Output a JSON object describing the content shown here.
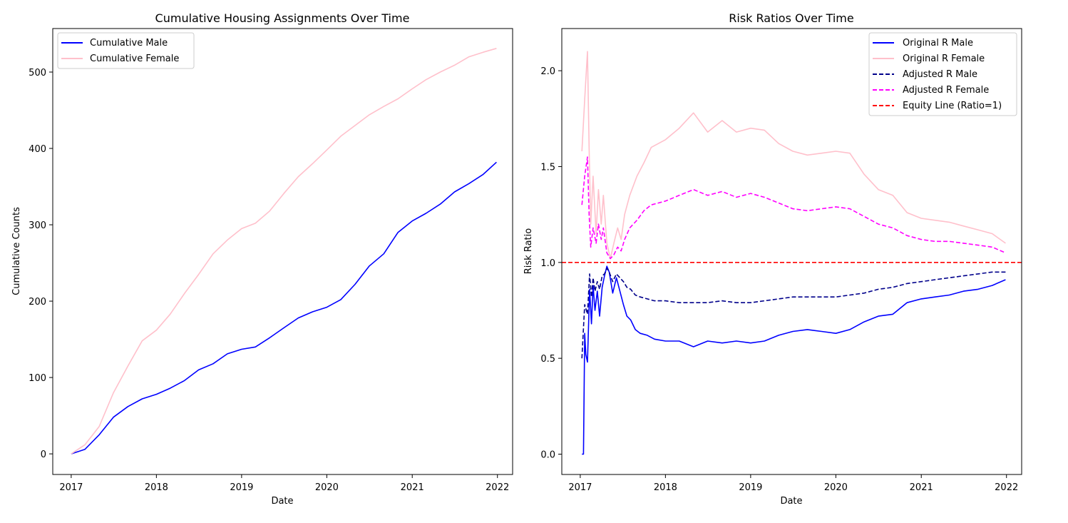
{
  "chart_data": [
    {
      "type": "line",
      "title": "Cumulative Housing Assignments Over Time",
      "xlabel": "Date",
      "ylabel": "Cumulative Counts",
      "xlim": [
        "2016-10-14",
        "2022-03-07"
      ],
      "ylim": [
        -27,
        557
      ],
      "x_ticks": [
        "2017",
        "2018",
        "2019",
        "2020",
        "2021",
        "2022"
      ],
      "y_ticks": [
        0,
        100,
        200,
        300,
        400,
        500
      ],
      "grid": false,
      "legend_position": "upper left",
      "series": [
        {
          "name": "Cumulative Male",
          "color": "#0000ff",
          "style": "solid",
          "x": [
            "2017-01-01",
            "2017-03-01",
            "2017-05-01",
            "2017-07-01",
            "2017-09-01",
            "2017-11-01",
            "2018-01-01",
            "2018-03-01",
            "2018-05-01",
            "2018-07-01",
            "2018-09-01",
            "2018-11-01",
            "2019-01-01",
            "2019-03-01",
            "2019-05-01",
            "2019-07-01",
            "2019-09-01",
            "2019-11-01",
            "2020-01-01",
            "2020-03-01",
            "2020-05-01",
            "2020-07-01",
            "2020-09-01",
            "2020-11-01",
            "2021-01-01",
            "2021-03-01",
            "2021-05-01",
            "2021-07-01",
            "2021-09-01",
            "2021-11-01",
            "2021-12-28"
          ],
          "values": [
            0,
            6,
            25,
            48,
            62,
            72,
            78,
            86,
            96,
            110,
            118,
            131,
            137,
            140,
            152,
            165,
            178,
            186,
            192,
            202,
            222,
            246,
            262,
            290,
            305,
            315,
            327,
            343,
            354,
            366,
            382
          ]
        },
        {
          "name": "Cumulative Female",
          "color": "#ffc0cb",
          "style": "solid",
          "x": [
            "2017-01-01",
            "2017-03-01",
            "2017-05-01",
            "2017-07-01",
            "2017-09-01",
            "2017-11-01",
            "2018-01-01",
            "2018-03-01",
            "2018-05-01",
            "2018-07-01",
            "2018-09-01",
            "2018-11-01",
            "2019-01-01",
            "2019-03-01",
            "2019-05-01",
            "2019-07-01",
            "2019-09-01",
            "2019-11-01",
            "2020-01-01",
            "2020-03-01",
            "2020-05-01",
            "2020-07-01",
            "2020-09-01",
            "2020-11-01",
            "2021-01-01",
            "2021-03-01",
            "2021-05-01",
            "2021-07-01",
            "2021-09-01",
            "2021-11-01",
            "2021-12-28"
          ],
          "values": [
            0,
            12,
            36,
            80,
            115,
            148,
            162,
            183,
            210,
            235,
            262,
            280,
            295,
            302,
            318,
            341,
            363,
            380,
            398,
            416,
            430,
            444,
            455,
            465,
            478,
            490,
            500,
            509,
            520,
            526,
            531
          ]
        }
      ]
    },
    {
      "type": "line",
      "title": "Risk Ratios Over Time",
      "xlabel": "Date",
      "ylabel": "Risk Ratio",
      "xlim": [
        "2016-10-14",
        "2022-03-07"
      ],
      "ylim": [
        -0.106,
        2.22
      ],
      "x_ticks": [
        "2017",
        "2018",
        "2019",
        "2020",
        "2021",
        "2022"
      ],
      "y_ticks": [
        "0.0",
        "0.5",
        "1.0",
        "1.5",
        "2.0"
      ],
      "grid": false,
      "legend_position": "upper right",
      "series": [
        {
          "name": "Original R Male",
          "color": "#0000ff",
          "style": "solid",
          "x": [
            "2017-01-08",
            "2017-01-15",
            "2017-01-20",
            "2017-01-25",
            "2017-02-01",
            "2017-02-10",
            "2017-02-18",
            "2017-02-25",
            "2017-03-05",
            "2017-03-15",
            "2017-03-25",
            "2017-04-05",
            "2017-04-15",
            "2017-04-25",
            "2017-05-05",
            "2017-05-20",
            "2017-06-05",
            "2017-06-20",
            "2017-07-05",
            "2017-07-20",
            "2017-08-05",
            "2017-08-25",
            "2017-09-15",
            "2017-10-15",
            "2017-11-15",
            "2018-01-01",
            "2018-03-01",
            "2018-05-01",
            "2018-07-01",
            "2018-09-01",
            "2018-11-01",
            "2019-01-01",
            "2019-03-01",
            "2019-05-01",
            "2019-07-01",
            "2019-09-01",
            "2019-11-01",
            "2020-01-01",
            "2020-03-01",
            "2020-05-01",
            "2020-07-01",
            "2020-09-01",
            "2020-11-01",
            "2021-01-01",
            "2021-03-01",
            "2021-05-01",
            "2021-07-01",
            "2021-09-01",
            "2021-11-01",
            "2021-12-28"
          ],
          "values": [
            0.0,
            0.0,
            0.63,
            0.52,
            0.48,
            0.86,
            0.68,
            0.88,
            0.75,
            0.85,
            0.72,
            0.87,
            0.93,
            0.98,
            0.95,
            0.84,
            0.92,
            0.85,
            0.78,
            0.72,
            0.7,
            0.65,
            0.63,
            0.62,
            0.6,
            0.59,
            0.59,
            0.56,
            0.59,
            0.58,
            0.59,
            0.58,
            0.59,
            0.62,
            0.64,
            0.65,
            0.64,
            0.63,
            0.65,
            0.69,
            0.72,
            0.73,
            0.79,
            0.81,
            0.82,
            0.83,
            0.85,
            0.86,
            0.88,
            0.91
          ]
        },
        {
          "name": "Original R Female",
          "color": "#ffc0cb",
          "style": "solid",
          "x": [
            "2017-01-08",
            "2017-01-20",
            "2017-02-01",
            "2017-02-08",
            "2017-02-15",
            "2017-02-25",
            "2017-03-10",
            "2017-03-20",
            "2017-04-01",
            "2017-04-10",
            "2017-04-25",
            "2017-05-10",
            "2017-05-25",
            "2017-06-10",
            "2017-06-25",
            "2017-07-10",
            "2017-08-01",
            "2017-09-01",
            "2017-10-01",
            "2017-11-01",
            "2018-01-01",
            "2018-03-01",
            "2018-05-01",
            "2018-07-01",
            "2018-09-01",
            "2018-11-01",
            "2019-01-01",
            "2019-03-01",
            "2019-05-01",
            "2019-07-01",
            "2019-09-01",
            "2019-11-01",
            "2020-01-01",
            "2020-03-01",
            "2020-05-01",
            "2020-07-01",
            "2020-09-01",
            "2020-11-01",
            "2021-01-01",
            "2021-03-01",
            "2021-05-01",
            "2021-07-01",
            "2021-09-01",
            "2021-11-01",
            "2021-12-28"
          ],
          "values": [
            1.58,
            1.85,
            2.1,
            1.6,
            1.2,
            1.45,
            1.15,
            1.38,
            1.2,
            1.35,
            1.1,
            1.02,
            1.1,
            1.18,
            1.12,
            1.25,
            1.35,
            1.45,
            1.52,
            1.6,
            1.64,
            1.7,
            1.78,
            1.68,
            1.74,
            1.68,
            1.7,
            1.69,
            1.62,
            1.58,
            1.56,
            1.57,
            1.58,
            1.57,
            1.46,
            1.38,
            1.35,
            1.26,
            1.23,
            1.22,
            1.21,
            1.19,
            1.17,
            1.15,
            1.1
          ]
        },
        {
          "name": "Adjusted R Male",
          "color": "#00008b",
          "style": "dashed",
          "x": [
            "2017-01-08",
            "2017-01-20",
            "2017-02-01",
            "2017-02-10",
            "2017-02-18",
            "2017-02-25",
            "2017-03-05",
            "2017-03-15",
            "2017-03-25",
            "2017-04-05",
            "2017-04-15",
            "2017-04-25",
            "2017-05-05",
            "2017-05-20",
            "2017-06-05",
            "2017-06-20",
            "2017-07-05",
            "2017-07-20",
            "2017-08-05",
            "2017-08-25",
            "2017-09-15",
            "2017-10-15",
            "2017-11-15",
            "2018-01-01",
            "2018-03-01",
            "2018-05-01",
            "2018-07-01",
            "2018-09-01",
            "2018-11-01",
            "2019-01-01",
            "2019-03-01",
            "2019-05-01",
            "2019-07-01",
            "2019-09-01",
            "2019-11-01",
            "2020-01-01",
            "2020-03-01",
            "2020-05-01",
            "2020-07-01",
            "2020-09-01",
            "2020-11-01",
            "2021-01-01",
            "2021-03-01",
            "2021-05-01",
            "2021-07-01",
            "2021-09-01",
            "2021-11-01",
            "2021-12-28"
          ],
          "values": [
            0.5,
            0.78,
            0.73,
            0.94,
            0.82,
            0.92,
            0.85,
            0.9,
            0.86,
            0.93,
            0.94,
            0.97,
            0.95,
            0.9,
            0.94,
            0.92,
            0.9,
            0.87,
            0.86,
            0.83,
            0.82,
            0.81,
            0.8,
            0.8,
            0.79,
            0.79,
            0.79,
            0.8,
            0.79,
            0.79,
            0.8,
            0.81,
            0.82,
            0.82,
            0.82,
            0.82,
            0.83,
            0.84,
            0.86,
            0.87,
            0.89,
            0.9,
            0.91,
            0.92,
            0.93,
            0.94,
            0.95,
            0.95
          ]
        },
        {
          "name": "Adjusted R Female",
          "color": "#ff00ff",
          "style": "dashed",
          "x": [
            "2017-01-08",
            "2017-01-20",
            "2017-02-01",
            "2017-02-08",
            "2017-02-15",
            "2017-02-25",
            "2017-03-10",
            "2017-03-20",
            "2017-04-01",
            "2017-04-10",
            "2017-04-25",
            "2017-05-10",
            "2017-05-25",
            "2017-06-10",
            "2017-06-25",
            "2017-07-10",
            "2017-08-01",
            "2017-09-01",
            "2017-10-01",
            "2017-11-01",
            "2018-01-01",
            "2018-03-01",
            "2018-05-01",
            "2018-07-01",
            "2018-09-01",
            "2018-11-01",
            "2019-01-01",
            "2019-03-01",
            "2019-05-01",
            "2019-07-01",
            "2019-09-01",
            "2019-11-01",
            "2020-01-01",
            "2020-03-01",
            "2020-05-01",
            "2020-07-01",
            "2020-09-01",
            "2020-11-01",
            "2021-01-01",
            "2021-03-01",
            "2021-05-01",
            "2021-07-01",
            "2021-09-01",
            "2021-11-01",
            "2021-12-28"
          ],
          "values": [
            1.3,
            1.45,
            1.55,
            1.25,
            1.08,
            1.18,
            1.1,
            1.2,
            1.12,
            1.18,
            1.05,
            1.02,
            1.04,
            1.08,
            1.06,
            1.12,
            1.18,
            1.22,
            1.27,
            1.3,
            1.32,
            1.35,
            1.38,
            1.35,
            1.37,
            1.34,
            1.36,
            1.34,
            1.31,
            1.28,
            1.27,
            1.28,
            1.29,
            1.28,
            1.24,
            1.2,
            1.18,
            1.14,
            1.12,
            1.11,
            1.11,
            1.1,
            1.09,
            1.08,
            1.05
          ]
        },
        {
          "name": "Equity Line (Ratio=1)",
          "color": "#ff0000",
          "style": "dashed",
          "constant_y": 1.0
        }
      ]
    }
  ]
}
